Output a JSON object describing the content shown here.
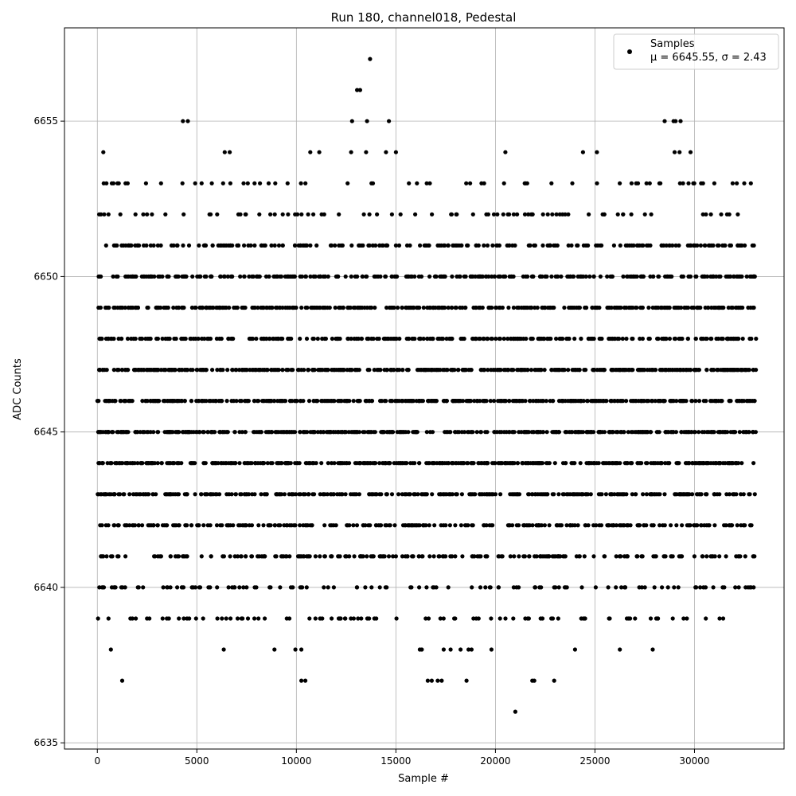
{
  "chart_data": {
    "type": "scatter",
    "title": "Run 180, channel018, Pedestal",
    "xlabel": "Sample #",
    "ylabel": "ADC Counts",
    "xlim": [
      -1650,
      34500
    ],
    "ylim": [
      6634.8,
      6658.0
    ],
    "xticks": [
      0,
      5000,
      10000,
      15000,
      20000,
      25000,
      30000
    ],
    "yticks": [
      6635,
      6640,
      6645,
      6650,
      6655
    ],
    "grid": true,
    "legend": {
      "position": "top-right",
      "entries": [
        {
          "line1": "Samples",
          "line2": "μ = 6645.55, σ = 2.43"
        }
      ]
    },
    "series": [
      {
        "name": "Samples",
        "color": "#000000",
        "marker": "circle",
        "x_range": [
          0,
          33100
        ],
        "dense_levels": [
          6641,
          6642,
          6643,
          6644,
          6645,
          6646,
          6647,
          6648,
          6649,
          6650,
          6651
        ],
        "sparse_points": [
          {
            "x": 300,
            "y": 6654
          },
          {
            "x": 320,
            "y": 6653
          },
          {
            "x": 560,
            "y": 6652
          },
          {
            "x": 4300,
            "y": 6655
          },
          {
            "x": 4550,
            "y": 6655
          },
          {
            "x": 6400,
            "y": 6654
          },
          {
            "x": 6650,
            "y": 6654
          },
          {
            "x": 10700,
            "y": 6654
          },
          {
            "x": 11150,
            "y": 6654
          },
          {
            "x": 12800,
            "y": 6655
          },
          {
            "x": 13050,
            "y": 6656
          },
          {
            "x": 13200,
            "y": 6656
          },
          {
            "x": 13550,
            "y": 6655
          },
          {
            "x": 13700,
            "y": 6657
          },
          {
            "x": 14650,
            "y": 6655
          },
          {
            "x": 15000,
            "y": 6654
          },
          {
            "x": 20500,
            "y": 6654
          },
          {
            "x": 24400,
            "y": 6654
          },
          {
            "x": 25100,
            "y": 6654
          },
          {
            "x": 28500,
            "y": 6655
          },
          {
            "x": 28950,
            "y": 6655
          },
          {
            "x": 29050,
            "y": 6655
          },
          {
            "x": 29300,
            "y": 6655
          },
          {
            "x": 29800,
            "y": 6654
          },
          {
            "x": 29000,
            "y": 6654
          },
          {
            "x": 29250,
            "y": 6654
          },
          {
            "x": 13500,
            "y": 6654
          },
          {
            "x": 12750,
            "y": 6654
          },
          {
            "x": 14500,
            "y": 6654
          },
          {
            "x": 32500,
            "y": 6653
          },
          {
            "x": 19300,
            "y": 6653
          },
          {
            "x": 17800,
            "y": 6652
          },
          {
            "x": 680,
            "y": 6638
          },
          {
            "x": 1250,
            "y": 6637
          },
          {
            "x": 6350,
            "y": 6638
          },
          {
            "x": 8900,
            "y": 6638
          },
          {
            "x": 9950,
            "y": 6638
          },
          {
            "x": 10250,
            "y": 6638
          },
          {
            "x": 10250,
            "y": 6637
          },
          {
            "x": 10450,
            "y": 6637
          },
          {
            "x": 16200,
            "y": 6638
          },
          {
            "x": 16300,
            "y": 6638
          },
          {
            "x": 16600,
            "y": 6637
          },
          {
            "x": 16800,
            "y": 6637
          },
          {
            "x": 17100,
            "y": 6637
          },
          {
            "x": 17300,
            "y": 6637
          },
          {
            "x": 17400,
            "y": 6638
          },
          {
            "x": 17750,
            "y": 6638
          },
          {
            "x": 18250,
            "y": 6638
          },
          {
            "x": 18550,
            "y": 6637
          },
          {
            "x": 18650,
            "y": 6638
          },
          {
            "x": 18800,
            "y": 6638
          },
          {
            "x": 19800,
            "y": 6638
          },
          {
            "x": 21000,
            "y": 6636
          },
          {
            "x": 21850,
            "y": 6637
          },
          {
            "x": 21950,
            "y": 6637
          },
          {
            "x": 22950,
            "y": 6637
          },
          {
            "x": 24000,
            "y": 6638
          },
          {
            "x": 26250,
            "y": 6638
          },
          {
            "x": 27900,
            "y": 6638
          }
        ]
      }
    ]
  }
}
